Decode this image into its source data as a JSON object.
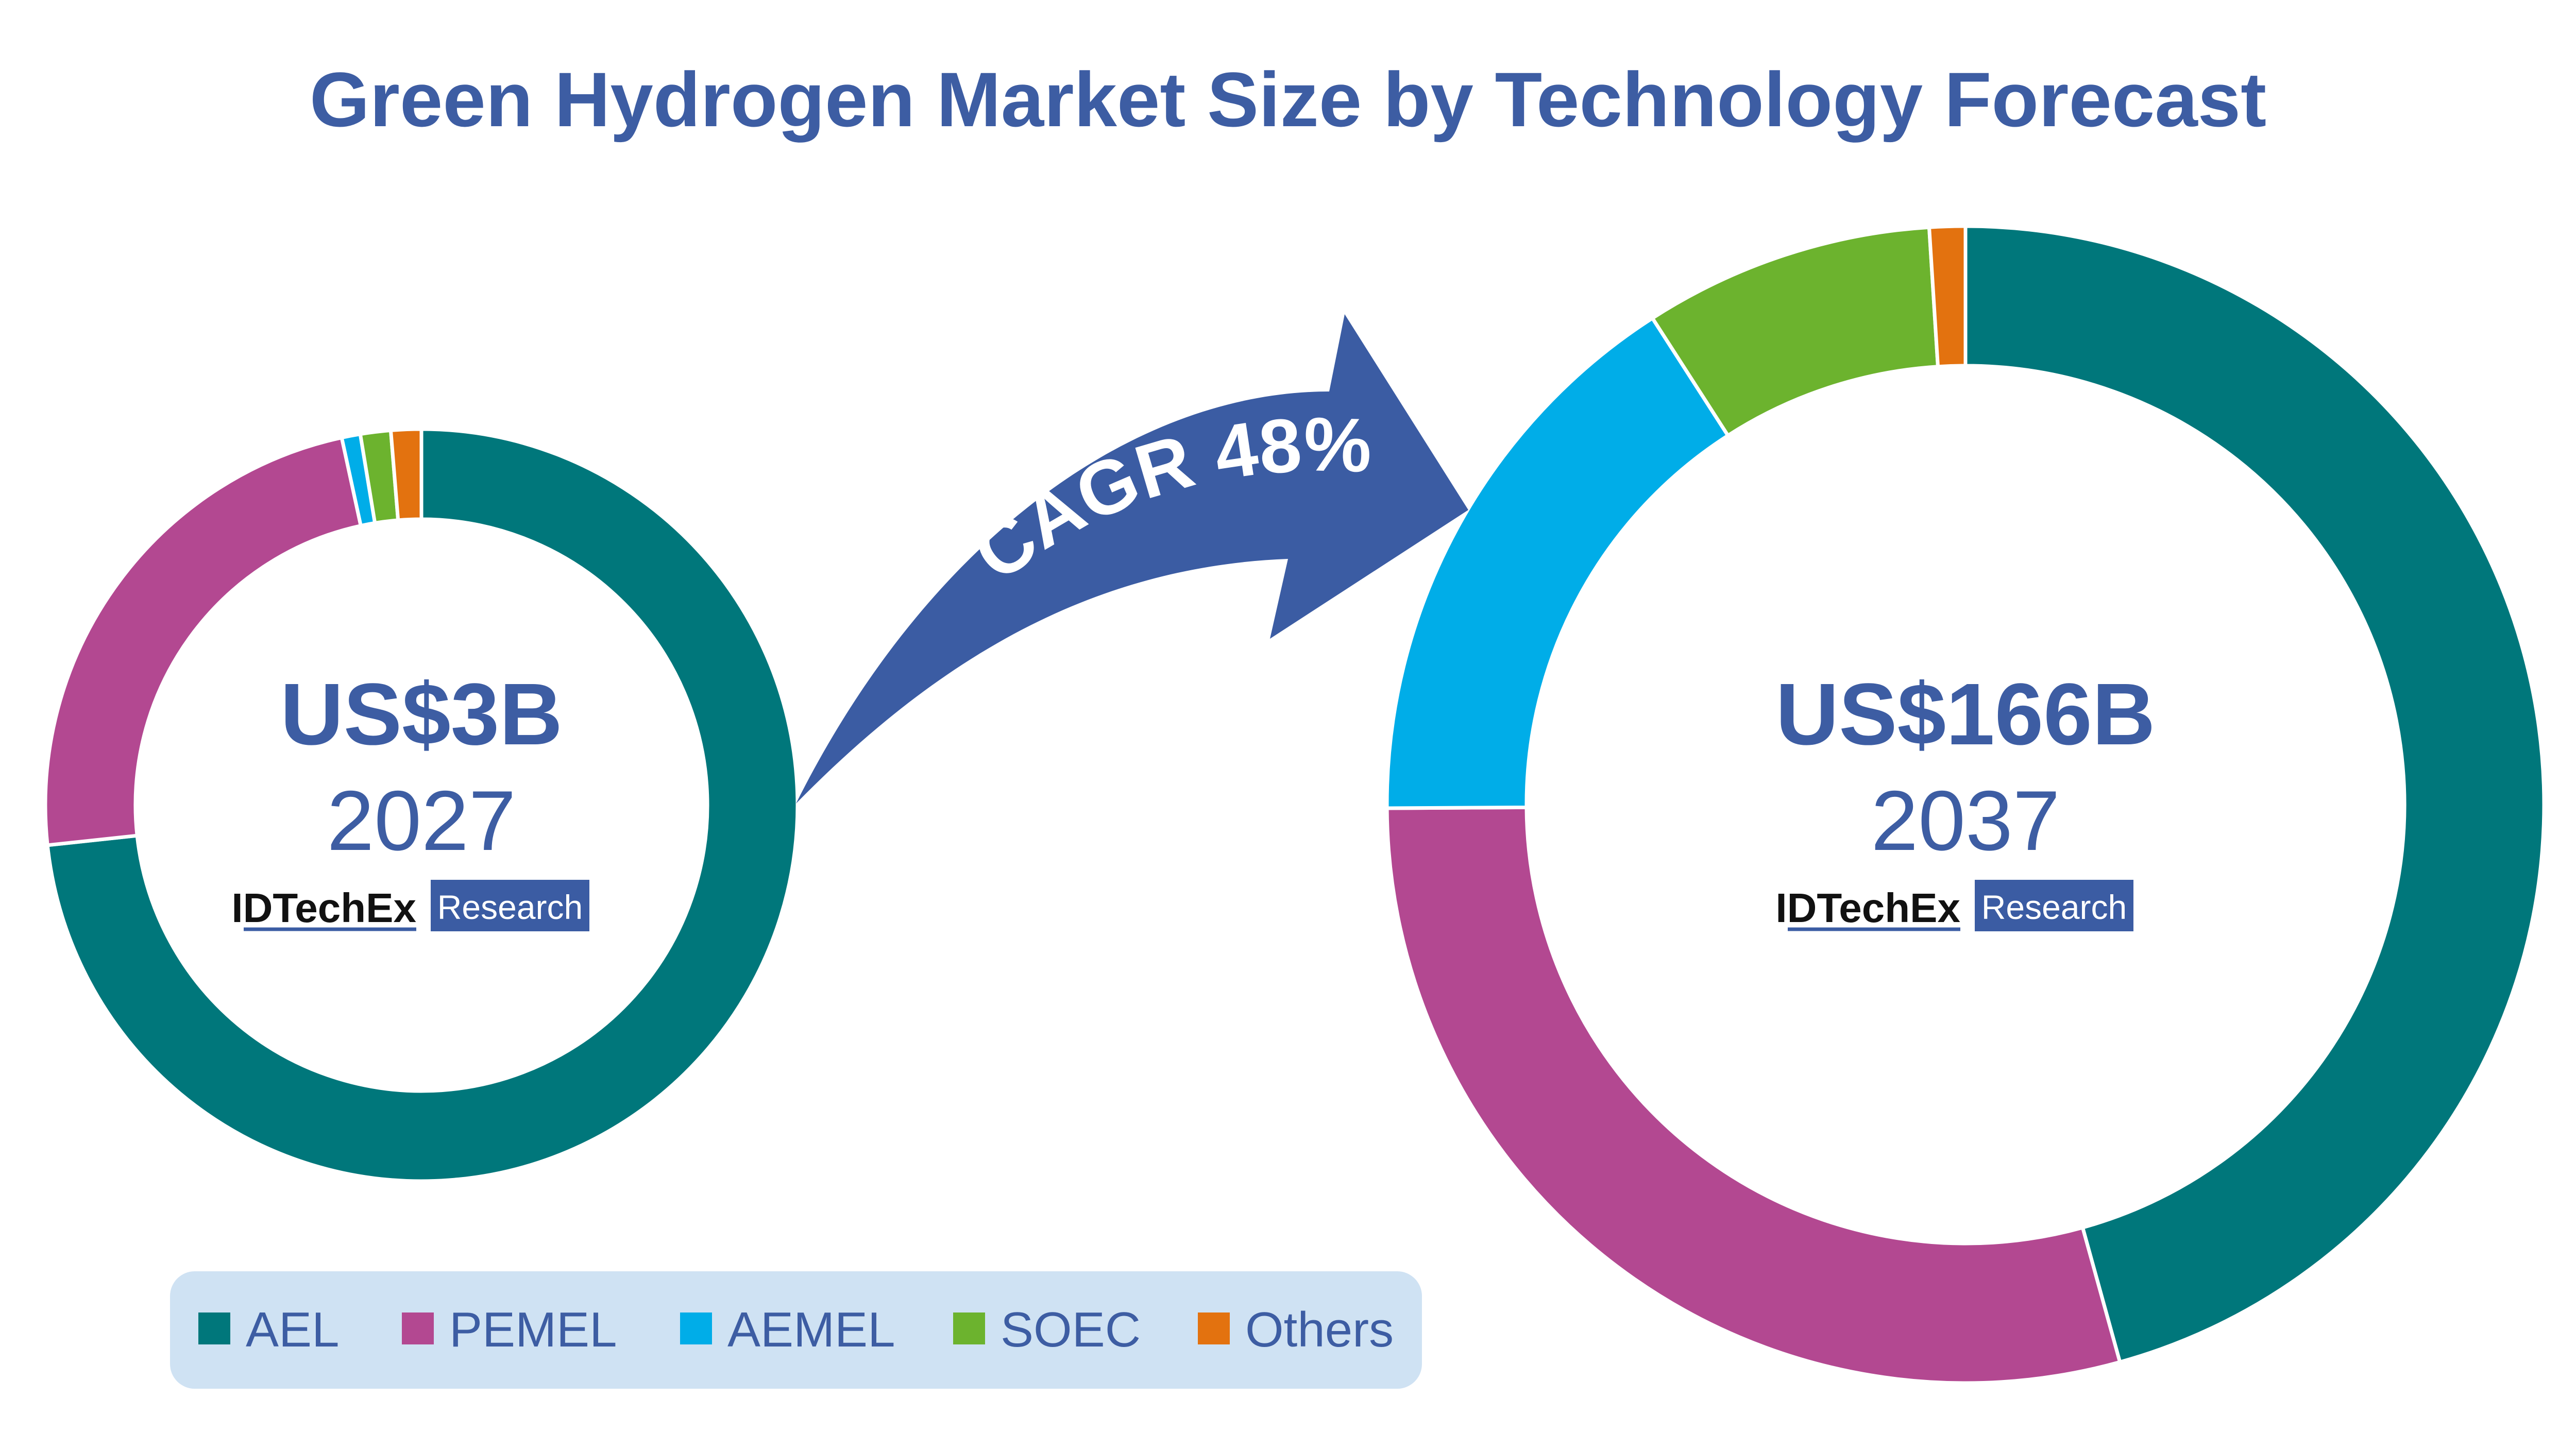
{
  "chart_data": {
    "title": "Green Hydrogen Market Size by Technology Forecast",
    "legend_position": "bottom-left",
    "legend": [
      {
        "name": "AEL",
        "color": "#00777b"
      },
      {
        "name": "PEMEL",
        "color": "#b34891"
      },
      {
        "name": "AEMEL",
        "color": "#00ade8"
      },
      {
        "name": "SOEC",
        "color": "#6cb32e"
      },
      {
        "name": "Others",
        "color": "#e3720f"
      }
    ],
    "charts": [
      {
        "type": "pie",
        "style": "donut",
        "year": "2027",
        "total_label": "US$3B",
        "categories": [
          "AEL",
          "PEMEL",
          "AEMEL",
          "SOEC",
          "Others"
        ],
        "values": [
          73.3,
          23.3,
          0.8,
          1.3,
          1.3
        ],
        "unit": "% share"
      },
      {
        "type": "pie",
        "style": "donut",
        "year": "2037",
        "total_label": "US$166B",
        "categories": [
          "AEL",
          "PEMEL",
          "AEMEL",
          "SOEC",
          "Others"
        ],
        "values": [
          45.7,
          29.2,
          16.0,
          8.1,
          1.0
        ],
        "unit": "% share"
      }
    ],
    "annotation": {
      "text": "CAGR 48%"
    }
  },
  "brand": {
    "logo_text": "IDTechEx",
    "logo_badge": "Research",
    "title_color": "#3d5da3",
    "accent_blue": "#3b5ca3",
    "legend_bg": "#cfe2f3"
  }
}
